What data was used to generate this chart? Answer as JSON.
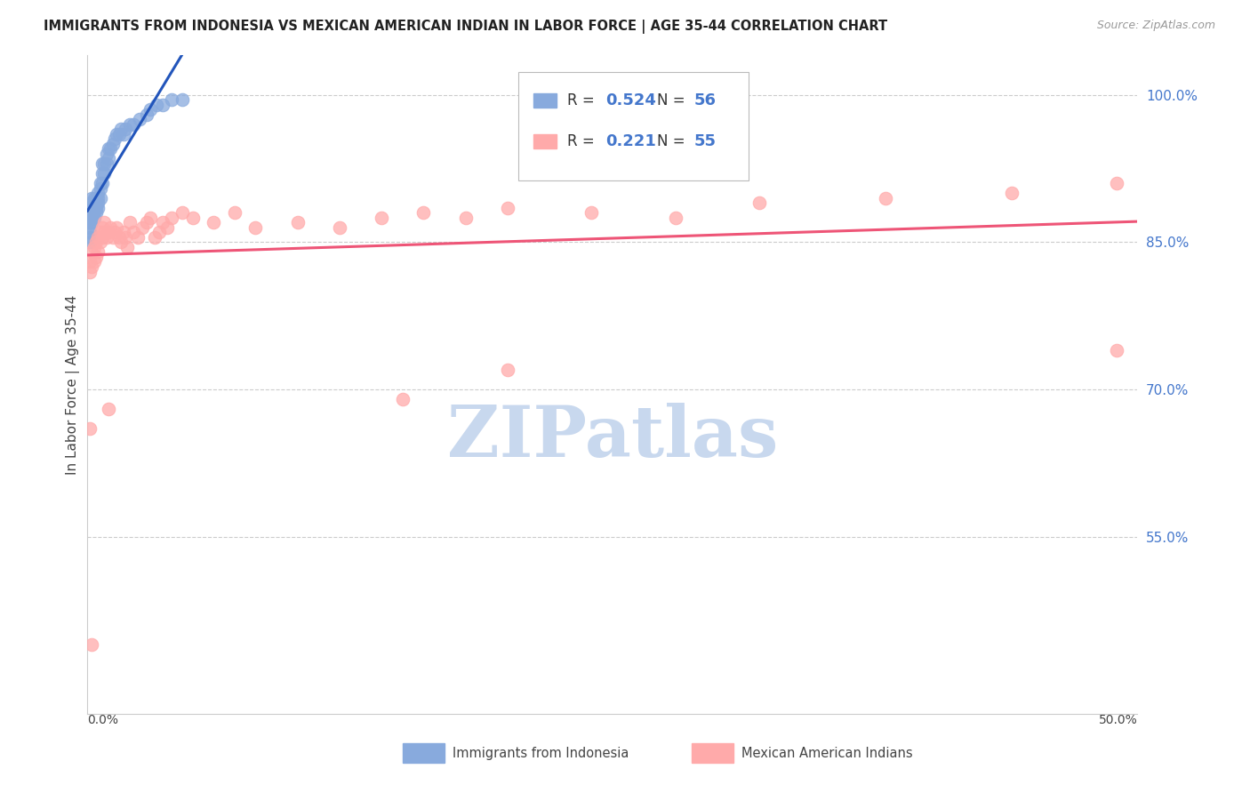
{
  "title": "IMMIGRANTS FROM INDONESIA VS MEXICAN AMERICAN INDIAN IN LABOR FORCE | AGE 35-44 CORRELATION CHART",
  "source": "Source: ZipAtlas.com",
  "ylabel": "In Labor Force | Age 35-44",
  "ytick_labels": [
    "100.0%",
    "85.0%",
    "70.0%",
    "55.0%"
  ],
  "ytick_values": [
    1.0,
    0.85,
    0.7,
    0.55
  ],
  "xmin": 0.0,
  "xmax": 0.5,
  "ymin": 0.37,
  "ymax": 1.04,
  "blue_color": "#88AADD",
  "pink_color": "#FFAAAA",
  "blue_line_color": "#2255BB",
  "pink_line_color": "#EE5577",
  "R_blue": 0.524,
  "N_blue": 56,
  "R_pink": 0.221,
  "N_pink": 55,
  "legend_label_blue": "Immigrants from Indonesia",
  "legend_label_pink": "Mexican American Indians",
  "blue_label_color": "#4477CC",
  "axis_label_color": "#4477CC",
  "watermark_color": "#C8D8EE",
  "background_color": "#FFFFFF",
  "grid_color": "#CCCCCC",
  "blue_x": [
    0.001,
    0.001,
    0.001,
    0.001,
    0.001,
    0.001,
    0.001,
    0.001,
    0.002,
    0.002,
    0.002,
    0.002,
    0.002,
    0.002,
    0.003,
    0.003,
    0.003,
    0.003,
    0.003,
    0.004,
    0.004,
    0.004,
    0.004,
    0.005,
    0.005,
    0.005,
    0.005,
    0.006,
    0.006,
    0.006,
    0.007,
    0.007,
    0.007,
    0.008,
    0.008,
    0.009,
    0.009,
    0.01,
    0.01,
    0.011,
    0.012,
    0.013,
    0.014,
    0.015,
    0.016,
    0.017,
    0.018,
    0.02,
    0.022,
    0.025,
    0.028,
    0.03,
    0.033,
    0.036,
    0.04,
    0.045
  ],
  "blue_y": [
    0.85,
    0.855,
    0.86,
    0.865,
    0.87,
    0.875,
    0.88,
    0.885,
    0.87,
    0.875,
    0.88,
    0.885,
    0.89,
    0.895,
    0.875,
    0.88,
    0.885,
    0.89,
    0.895,
    0.88,
    0.885,
    0.89,
    0.895,
    0.885,
    0.89,
    0.895,
    0.9,
    0.895,
    0.905,
    0.91,
    0.91,
    0.92,
    0.93,
    0.92,
    0.93,
    0.93,
    0.94,
    0.935,
    0.945,
    0.945,
    0.95,
    0.955,
    0.96,
    0.96,
    0.965,
    0.96,
    0.965,
    0.97,
    0.97,
    0.975,
    0.98,
    0.985,
    0.99,
    0.99,
    0.995,
    0.995
  ],
  "pink_x": [
    0.001,
    0.001,
    0.002,
    0.002,
    0.003,
    0.003,
    0.004,
    0.004,
    0.005,
    0.005,
    0.006,
    0.006,
    0.007,
    0.007,
    0.008,
    0.008,
    0.009,
    0.01,
    0.011,
    0.012,
    0.013,
    0.014,
    0.015,
    0.016,
    0.017,
    0.018,
    0.019,
    0.02,
    0.022,
    0.024,
    0.026,
    0.028,
    0.03,
    0.032,
    0.034,
    0.036,
    0.038,
    0.04,
    0.045,
    0.05,
    0.06,
    0.07,
    0.08,
    0.1,
    0.12,
    0.14,
    0.16,
    0.18,
    0.2,
    0.24,
    0.28,
    0.32,
    0.38,
    0.44,
    0.49
  ],
  "pink_y": [
    0.82,
    0.83,
    0.825,
    0.84,
    0.83,
    0.845,
    0.835,
    0.85,
    0.84,
    0.855,
    0.85,
    0.86,
    0.855,
    0.865,
    0.86,
    0.87,
    0.855,
    0.86,
    0.865,
    0.855,
    0.86,
    0.865,
    0.855,
    0.85,
    0.86,
    0.855,
    0.845,
    0.87,
    0.86,
    0.855,
    0.865,
    0.87,
    0.875,
    0.855,
    0.86,
    0.87,
    0.865,
    0.875,
    0.88,
    0.875,
    0.87,
    0.88,
    0.865,
    0.87,
    0.865,
    0.875,
    0.88,
    0.875,
    0.885,
    0.88,
    0.875,
    0.89,
    0.895,
    0.9,
    0.91
  ],
  "pink_outliers_x": [
    0.001,
    0.002,
    0.01,
    0.15,
    0.2,
    0.49
  ],
  "pink_outliers_y": [
    0.66,
    0.44,
    0.68,
    0.69,
    0.72,
    0.74
  ]
}
